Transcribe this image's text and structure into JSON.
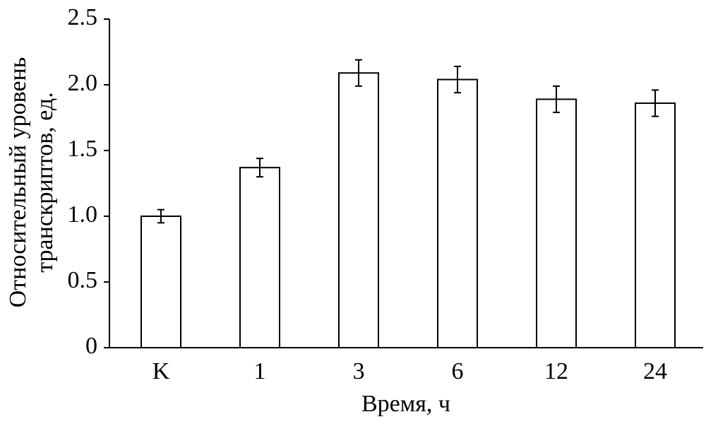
{
  "chart_data": {
    "type": "bar",
    "ylabel": [
      "Относительный уровень",
      "транскриптов, ед."
    ],
    "xlabel": "Время, ч",
    "categories": [
      "K",
      "1",
      "3",
      "6",
      "12",
      "24"
    ],
    "values": [
      1.0,
      1.37,
      2.09,
      2.04,
      1.89,
      1.86
    ],
    "errors": [
      0.05,
      0.07,
      0.1,
      0.1,
      0.1,
      0.1
    ],
    "color": "#ffffff",
    "ylim": [
      0,
      2.5
    ],
    "yticks": [
      0,
      0.5,
      {
        "value": 1,
        "label": "1.0"
      },
      1.5,
      {
        "value": 2,
        "label": "2.0"
      },
      2.5
    ]
  }
}
